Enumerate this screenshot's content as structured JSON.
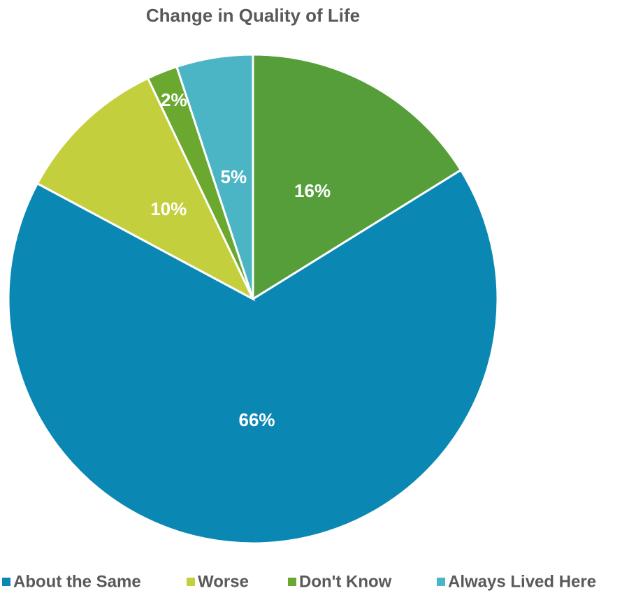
{
  "chart_data": {
    "type": "pie",
    "title": "Change in Quality of Life",
    "categories": [
      null,
      "About the Same",
      "Worse",
      "Don't Know",
      "Always Lived Here"
    ],
    "values": [
      16,
      66,
      10,
      2,
      5
    ],
    "value_labels": [
      "16%",
      "66%",
      "10%",
      "2%",
      "5%"
    ],
    "colors": [
      "#559e3a",
      "#0a88b3",
      "#c3cf3c",
      "#6aa82f",
      "#4bb5c6"
    ],
    "legend": "bottom"
  }
}
